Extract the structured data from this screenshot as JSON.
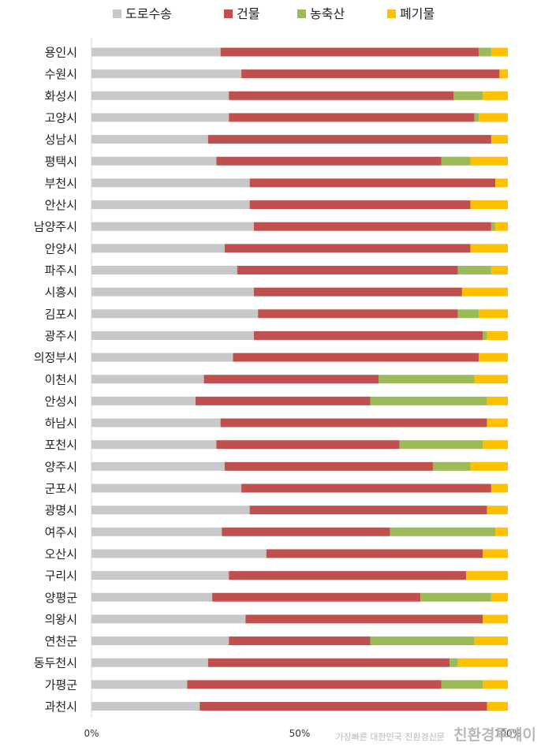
{
  "chart_data": {
    "type": "bar",
    "orientation": "horizontal",
    "stacked": true,
    "normalized": true,
    "xlim": [
      0,
      100
    ],
    "xticks": [
      "0%",
      "50%",
      "100%"
    ],
    "legend_position": "top",
    "categories": [
      "용인시",
      "수원시",
      "화성시",
      "고양시",
      "성남시",
      "평택시",
      "부천시",
      "안산시",
      "남양주시",
      "안양시",
      "파주시",
      "시흥시",
      "김포시",
      "광주시",
      "의정부시",
      "이천시",
      "안성시",
      "하남시",
      "포천시",
      "양주시",
      "군포시",
      "광명시",
      "여주시",
      "오산시",
      "구리시",
      "양평군",
      "의왕시",
      "연천군",
      "동두천시",
      "가평군",
      "과천시"
    ],
    "series": [
      {
        "name": "도로수송",
        "color": "#c8c8c8",
        "values": [
          31,
          36,
          33,
          33,
          28,
          30,
          38,
          38,
          39,
          32,
          35,
          39,
          40,
          39,
          34,
          27,
          25,
          31,
          30,
          32,
          36,
          38,
          31,
          42,
          33,
          29,
          37,
          33,
          28,
          23,
          26
        ]
      },
      {
        "name": "건물",
        "color": "#c0504d",
        "values": [
          62,
          62,
          54,
          59,
          68,
          54,
          59,
          53,
          57,
          59,
          53,
          50,
          48,
          55,
          59,
          42,
          42,
          64,
          44,
          50,
          60,
          57,
          40,
          52,
          57,
          50,
          57,
          34,
          58,
          61,
          69
        ]
      },
      {
        "name": "농축산",
        "color": "#9bbb59",
        "values": [
          3,
          0,
          7,
          1,
          0,
          7,
          0,
          0,
          1,
          0,
          8,
          0,
          5,
          1,
          0,
          23,
          28,
          0,
          20,
          9,
          0,
          0,
          25,
          0,
          0,
          17,
          0,
          25,
          2,
          10,
          0
        ]
      },
      {
        "name": "폐기물",
        "color": "#ffc000",
        "values": [
          4,
          2,
          6,
          7,
          4,
          9,
          3,
          9,
          3,
          9,
          4,
          11,
          7,
          5,
          7,
          8,
          5,
          5,
          6,
          9,
          4,
          5,
          3,
          6,
          10,
          4,
          6,
          8,
          12,
          6,
          5
        ]
      }
    ]
  },
  "watermark": {
    "small_text": "가장빠른 대한민국 친환경신문",
    "big_text": "친환경투데이"
  }
}
